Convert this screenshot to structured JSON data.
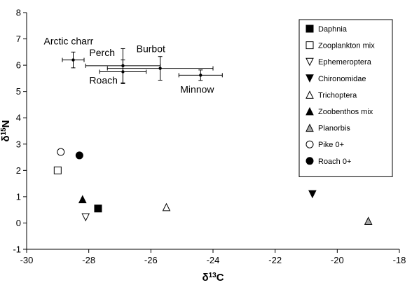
{
  "chart_data": {
    "type": "scatter",
    "title": "",
    "xlabel": {
      "main": "δ",
      "sup": "13",
      "tail": "C"
    },
    "ylabel": {
      "main": "δ",
      "sup": "15",
      "tail": "N"
    },
    "xlim": [
      -30,
      -18
    ],
    "ylim": [
      -1,
      8
    ],
    "x_ticks": [
      -30,
      -28,
      -26,
      -24,
      -22,
      -20,
      -18
    ],
    "y_ticks": [
      -1,
      0,
      1,
      2,
      3,
      4,
      5,
      6,
      7,
      8
    ],
    "grid": false,
    "legend_position": "right",
    "fish": [
      {
        "name": "Arctic charr",
        "x": -28.5,
        "y": 6.2,
        "x_err": 0.35,
        "y_err": 0.3
      },
      {
        "name": "Perch",
        "x": -26.9,
        "y": 5.98,
        "x_err": 1.2,
        "y_err": 0.65
      },
      {
        "name": "Roach",
        "x": -26.9,
        "y": 5.75,
        "x_err": 0.75,
        "y_err": 0.45
      },
      {
        "name": "Burbot",
        "x": -25.7,
        "y": 5.88,
        "x_err": 1.7,
        "y_err": 0.45
      },
      {
        "name": "Minnow",
        "x": -24.4,
        "y": 5.62,
        "x_err": 0.7,
        "y_err": 0.2
      }
    ],
    "prey": [
      {
        "name": "Daphnia",
        "marker": "square-filled",
        "x": -27.7,
        "y": 0.55
      },
      {
        "name": "Zooplankton mix",
        "marker": "square-open",
        "x": -29.0,
        "y": 2.0
      },
      {
        "name": "Ephemeroptera",
        "marker": "triangle-down-open",
        "x": -28.1,
        "y": 0.22
      },
      {
        "name": "Chironomidae",
        "marker": "triangle-down-filled",
        "x": -20.8,
        "y": 1.1
      },
      {
        "name": "Trichoptera",
        "marker": "triangle-up-open",
        "x": -25.5,
        "y": 0.6
      },
      {
        "name": "Zoobenthos mix",
        "marker": "triangle-up-filled",
        "x": -28.2,
        "y": 0.9
      },
      {
        "name": "Planorbis",
        "marker": "triangle-up-gray",
        "x": -19.0,
        "y": 0.08
      },
      {
        "name": "Pike 0+",
        "marker": "circle-open",
        "x": -28.9,
        "y": 2.7
      },
      {
        "name": "Roach 0+",
        "marker": "circle-filled",
        "x": -28.3,
        "y": 2.57
      }
    ],
    "colors": {
      "marker": "#000000",
      "gray_fill": "#a6a6a6"
    }
  }
}
